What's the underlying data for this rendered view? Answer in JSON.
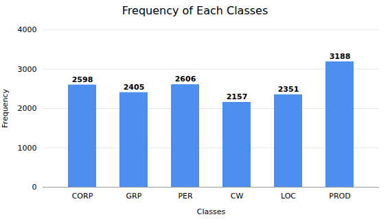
{
  "chart_data": {
    "type": "bar",
    "title": "Frequency of Each Classes",
    "xlabel": "Classes",
    "ylabel": "Frequency",
    "categories": [
      "CORP",
      "GRP",
      "PER",
      "CW",
      "LOC",
      "PROD"
    ],
    "values": [
      2598,
      2405,
      2606,
      2157,
      2351,
      3188
    ],
    "color": "#4d8fef",
    "ylim": [
      0,
      4000
    ],
    "yticks": [
      0,
      1000,
      2000,
      3000,
      4000
    ],
    "grid": true,
    "data_labels": true
  }
}
